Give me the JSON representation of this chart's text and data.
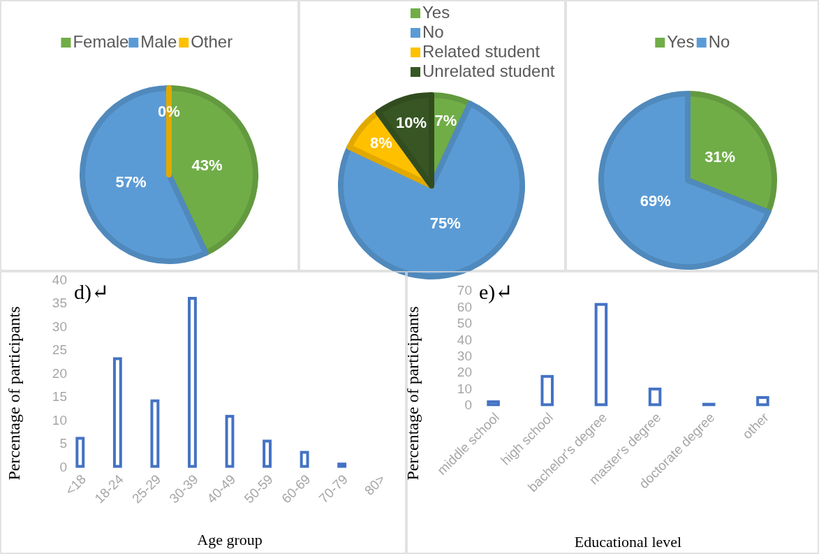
{
  "chart_data": [
    {
      "type": "pie",
      "categories": [
        "Female",
        "Male",
        "Other"
      ],
      "values": [
        43,
        57,
        0
      ],
      "colors": [
        "#70ad47",
        "#5b9bd5",
        "#ffc000"
      ],
      "value_labels": [
        "43%",
        "57%",
        "0%"
      ],
      "legend": "top"
    },
    {
      "type": "pie",
      "categories": [
        "Yes",
        "No",
        "Related student",
        "Unrelated student"
      ],
      "values": [
        7,
        75,
        8,
        10
      ],
      "colors": [
        "#70ad47",
        "#5b9bd5",
        "#ffc000",
        "#375623"
      ],
      "value_labels": [
        "7%",
        "75%",
        "8%",
        "10%"
      ],
      "legend": "top"
    },
    {
      "type": "pie",
      "categories": [
        "Yes",
        "No"
      ],
      "values": [
        31,
        69
      ],
      "colors": [
        "#70ad47",
        "#5b9bd5"
      ],
      "value_labels": [
        "31%",
        "69%"
      ],
      "legend": "top"
    },
    {
      "type": "bar",
      "categories": [
        "<18",
        "18-24",
        "25-29",
        "30-39",
        "40-49",
        "50-59",
        "60-69",
        "70-79",
        "80>"
      ],
      "values": [
        6.6,
        23.6,
        14.6,
        36.5,
        11.3,
        6.0,
        3.6,
        1.1,
        0
      ],
      "color": "#4472c4",
      "ylim": [
        0,
        40
      ],
      "yticks": [
        0,
        5,
        10,
        15,
        20,
        25,
        30,
        35,
        40
      ],
      "xlabel": "Age group",
      "ylabel": "Percentage of participants",
      "annotations": [
        "d)↵"
      ],
      "grid": false
    },
    {
      "type": "bar",
      "categories": [
        "middle school",
        "high school",
        "bachelor's degree",
        "master's degree",
        "doctorate degree",
        "other"
      ],
      "values": [
        3.5,
        19,
        63,
        11.3,
        2,
        6.1
      ],
      "color": "#4472c4",
      "ylim": [
        0,
        70
      ],
      "yticks": [
        0,
        10,
        20,
        30,
        40,
        50,
        60,
        70
      ],
      "xlabel": "Educational level",
      "ylabel": "Percentage of participants",
      "annotations": [
        "e)↵"
      ],
      "grid": false
    }
  ]
}
